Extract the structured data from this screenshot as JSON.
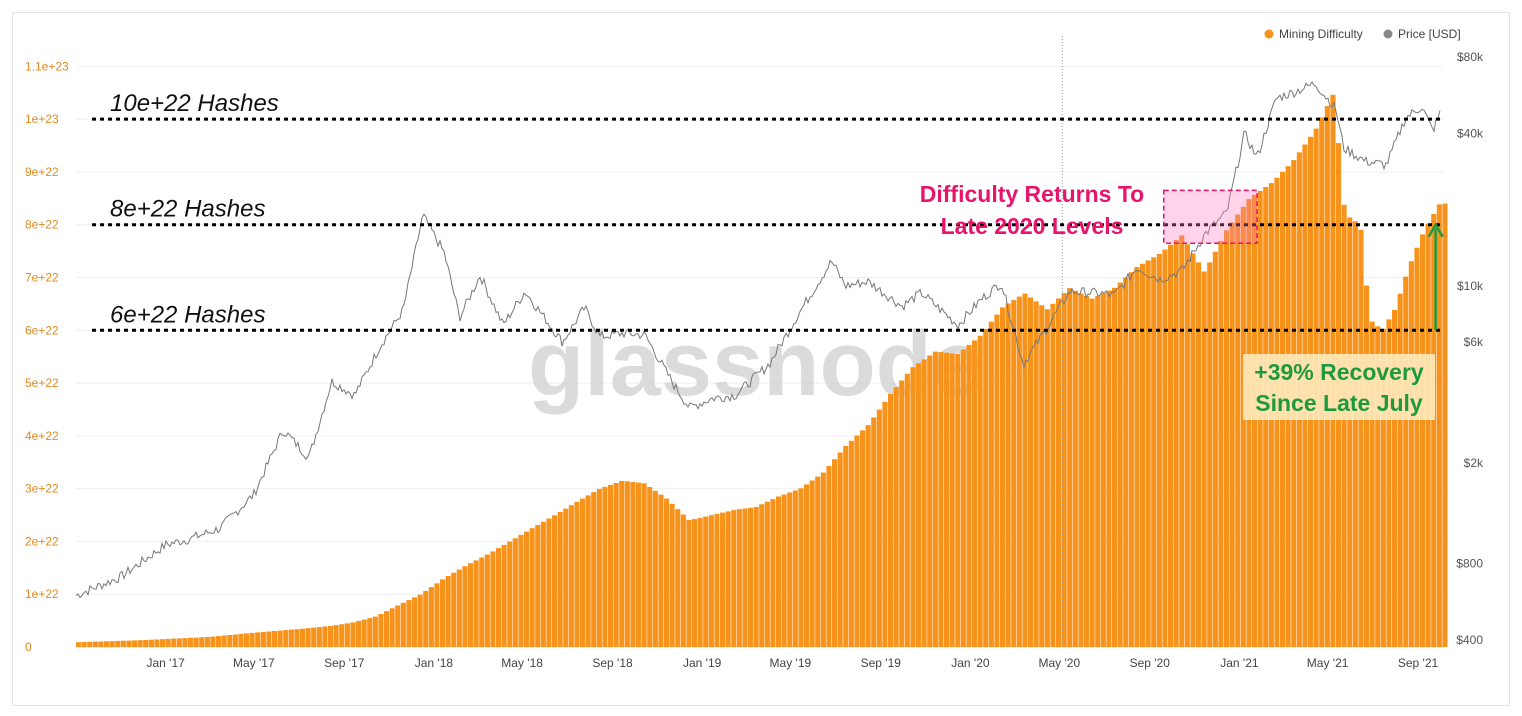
{
  "legend": {
    "items": [
      {
        "label": "Mining Difficulty",
        "color": "#f7931a"
      },
      {
        "label": "Price [USD]",
        "color": "#888888"
      }
    ]
  },
  "watermark": "glassnode",
  "chart_data": {
    "type": "bar",
    "title": "",
    "xlabel": "",
    "ylabel": "",
    "x_range": [
      "2016-09-01",
      "2021-10-05"
    ],
    "x_ticks": [
      "Jan '17",
      "May '17",
      "Sep '17",
      "Jan '18",
      "May '18",
      "Sep '18",
      "Jan '19",
      "May '19",
      "Sep '19",
      "Jan '20",
      "May '20",
      "Sep '20",
      "Jan '21",
      "May '21",
      "Sep '21"
    ],
    "y_left": {
      "ylim": [
        0,
        1.15e+23
      ],
      "ticks": [
        {
          "v": 0,
          "label": "0"
        },
        {
          "v": 1e+22,
          "label": "1e+22"
        },
        {
          "v": 2e+22,
          "label": "2e+22"
        },
        {
          "v": 3e+22,
          "label": "3e+22"
        },
        {
          "v": 4e+22,
          "label": "4e+22"
        },
        {
          "v": 5e+22,
          "label": "5e+22"
        },
        {
          "v": 6e+22,
          "label": "6e+22"
        },
        {
          "v": 7e+22,
          "label": "7e+22"
        },
        {
          "v": 8e+22,
          "label": "8e+22"
        },
        {
          "v": 9e+22,
          "label": "9e+22"
        },
        {
          "v": 1e+23,
          "label": "1e+23"
        },
        {
          "v": 1.1e+23,
          "label": "1.1e+23"
        }
      ]
    },
    "y_right": {
      "scale": "log",
      "ylim": [
        400,
        80000
      ],
      "ticks": [
        {
          "v": 400,
          "label": "$400"
        },
        {
          "v": 800,
          "label": "$800"
        },
        {
          "v": 2000,
          "label": "$2k"
        },
        {
          "v": 6000,
          "label": "$6k"
        },
        {
          "v": 10000,
          "label": "$10k"
        },
        {
          "v": 40000,
          "label": "$40k"
        },
        {
          "v": 80000,
          "label": "$80k"
        }
      ]
    },
    "series": [
      {
        "name": "Mining Difficulty",
        "type": "bar",
        "color": "#f7931a",
        "points": [
          [
            "2016-09-01",
            9e+20
          ],
          [
            "2016-12-01",
            1.3e+21
          ],
          [
            "2017-03-01",
            1.9e+21
          ],
          [
            "2017-05-01",
            2.7e+21
          ],
          [
            "2017-07-01",
            3.4e+21
          ],
          [
            "2017-08-15",
            4e+21
          ],
          [
            "2017-09-15",
            4.7e+21
          ],
          [
            "2017-10-15",
            5.8e+21
          ],
          [
            "2017-11-15",
            8e+21
          ],
          [
            "2017-12-15",
            1e+22
          ],
          [
            "2018-01-15",
            1.3e+22
          ],
          [
            "2018-02-15",
            1.55e+22
          ],
          [
            "2018-03-15",
            1.75e+22
          ],
          [
            "2018-04-15",
            2e+22
          ],
          [
            "2018-05-15",
            2.25e+22
          ],
          [
            "2018-06-15",
            2.5e+22
          ],
          [
            "2018-07-15",
            2.75e+22
          ],
          [
            "2018-08-15",
            3e+22
          ],
          [
            "2018-09-15",
            3.15e+22
          ],
          [
            "2018-10-15",
            3.1e+22
          ],
          [
            "2018-11-15",
            2.8e+22
          ],
          [
            "2018-12-15",
            2.4e+22
          ],
          [
            "2019-01-15",
            2.5e+22
          ],
          [
            "2019-02-15",
            2.6e+22
          ],
          [
            "2019-03-15",
            2.65e+22
          ],
          [
            "2019-04-15",
            2.85e+22
          ],
          [
            "2019-05-15",
            3e+22
          ],
          [
            "2019-06-15",
            3.3e+22
          ],
          [
            "2019-07-15",
            3.8e+22
          ],
          [
            "2019-08-15",
            4.2e+22
          ],
          [
            "2019-09-15",
            4.8e+22
          ],
          [
            "2019-10-15",
            5.3e+22
          ],
          [
            "2019-11-15",
            5.6e+22
          ],
          [
            "2019-12-15",
            5.55e+22
          ],
          [
            "2020-01-15",
            5.9e+22
          ],
          [
            "2020-02-15",
            6.45e+22
          ],
          [
            "2020-03-15",
            6.7e+22
          ],
          [
            "2020-04-15",
            6.4e+22
          ],
          [
            "2020-05-15",
            6.8e+22
          ],
          [
            "2020-06-15",
            6.6e+22
          ],
          [
            "2020-07-15",
            6.8e+22
          ],
          [
            "2020-08-15",
            7.2e+22
          ],
          [
            "2020-09-15",
            7.45e+22
          ],
          [
            "2020-10-15",
            7.8e+22
          ],
          [
            "2020-11-15",
            7.1e+22
          ],
          [
            "2020-12-15",
            7.9e+22
          ],
          [
            "2021-01-15",
            8.5e+22
          ],
          [
            "2021-02-15",
            8.8e+22
          ],
          [
            "2021-03-15",
            9.2e+22
          ],
          [
            "2021-04-15",
            9.8e+22
          ],
          [
            "2021-05-10",
            1.05e+23
          ],
          [
            "2021-05-25",
            8.2e+22
          ],
          [
            "2021-06-15",
            8e+22
          ],
          [
            "2021-06-28",
            6.2e+22
          ],
          [
            "2021-07-15",
            6e+22
          ],
          [
            "2021-08-01",
            6.4e+22
          ],
          [
            "2021-08-20",
            7.2e+22
          ],
          [
            "2021-09-10",
            7.9e+22
          ],
          [
            "2021-10-01",
            8.4e+22
          ]
        ]
      },
      {
        "name": "Price [USD]",
        "type": "line",
        "axis": "right",
        "color": "#777777",
        "points": [
          [
            "2016-09-01",
            600
          ],
          [
            "2016-11-01",
            710
          ],
          [
            "2017-01-01",
            950
          ],
          [
            "2017-02-01",
            1000
          ],
          [
            "2017-03-15",
            1100
          ],
          [
            "2017-05-01",
            1500
          ],
          [
            "2017-06-10",
            2700
          ],
          [
            "2017-07-15",
            2100
          ],
          [
            "2017-08-15",
            4200
          ],
          [
            "2017-09-15",
            3700
          ],
          [
            "2017-10-20",
            5800
          ],
          [
            "2017-11-20",
            8000
          ],
          [
            "2017-12-17",
            19000
          ],
          [
            "2018-01-15",
            13500
          ],
          [
            "2018-02-05",
            7500
          ],
          [
            "2018-03-05",
            11000
          ],
          [
            "2018-04-05",
            7000
          ],
          [
            "2018-05-05",
            9500
          ],
          [
            "2018-06-25",
            6000
          ],
          [
            "2018-07-25",
            8200
          ],
          [
            "2018-08-15",
            6300
          ],
          [
            "2018-09-15",
            6500
          ],
          [
            "2018-10-15",
            6400
          ],
          [
            "2018-11-25",
            4000
          ],
          [
            "2018-12-15",
            3300
          ],
          [
            "2019-01-15",
            3600
          ],
          [
            "2019-02-15",
            3700
          ],
          [
            "2019-04-02",
            4900
          ],
          [
            "2019-05-15",
            8000
          ],
          [
            "2019-06-26",
            12500
          ],
          [
            "2019-07-15",
            10000
          ],
          [
            "2019-08-15",
            10400
          ],
          [
            "2019-09-30",
            8300
          ],
          [
            "2019-10-26",
            9400
          ],
          [
            "2019-12-15",
            7000
          ],
          [
            "2020-01-15",
            8800
          ],
          [
            "2020-02-12",
            10300
          ],
          [
            "2020-03-13",
            4900
          ],
          [
            "2020-04-15",
            6900
          ],
          [
            "2020-05-15",
            9500
          ],
          [
            "2020-06-15",
            9400
          ],
          [
            "2020-07-15",
            9200
          ],
          [
            "2020-08-15",
            11800
          ],
          [
            "2020-09-15",
            10600
          ],
          [
            "2020-10-15",
            11500
          ],
          [
            "2020-11-15",
            16000
          ],
          [
            "2020-12-15",
            19500
          ],
          [
            "2021-01-08",
            40000
          ],
          [
            "2021-01-25",
            32000
          ],
          [
            "2021-02-20",
            55000
          ],
          [
            "2021-03-15",
            58000
          ],
          [
            "2021-04-14",
            63000
          ],
          [
            "2021-05-12",
            50000
          ],
          [
            "2021-05-23",
            35000
          ],
          [
            "2021-06-22",
            31000
          ],
          [
            "2021-07-20",
            30000
          ],
          [
            "2021-08-15",
            46000
          ],
          [
            "2021-09-06",
            51000
          ],
          [
            "2021-09-21",
            41000
          ],
          [
            "2021-10-01",
            48000
          ]
        ]
      }
    ],
    "reference_lines": [
      {
        "value": 1e+23,
        "label": "10e+22 Hashes"
      },
      {
        "value": 8e+22,
        "label": "8e+22 Hashes"
      },
      {
        "value": 6e+22,
        "label": "6e+22 Hashes"
      }
    ],
    "annotations": [
      {
        "text": [
          "Difficulty Returns To",
          "Late 2020 Levels"
        ],
        "color": "#e8136a",
        "range": [
          "2020-09-20",
          "2021-01-25"
        ],
        "box_top": 8.65e+22,
        "box_bottom": 7.65e+22
      },
      {
        "text": [
          "+39% Recovery",
          "Since Late July"
        ],
        "color": "#1e9a3e",
        "arrow_from": 6e+22,
        "arrow_to": 8e+22,
        "arrow_date": "2021-09-25"
      }
    ],
    "crosshair_date": "2020-05-05",
    "grid": true
  }
}
